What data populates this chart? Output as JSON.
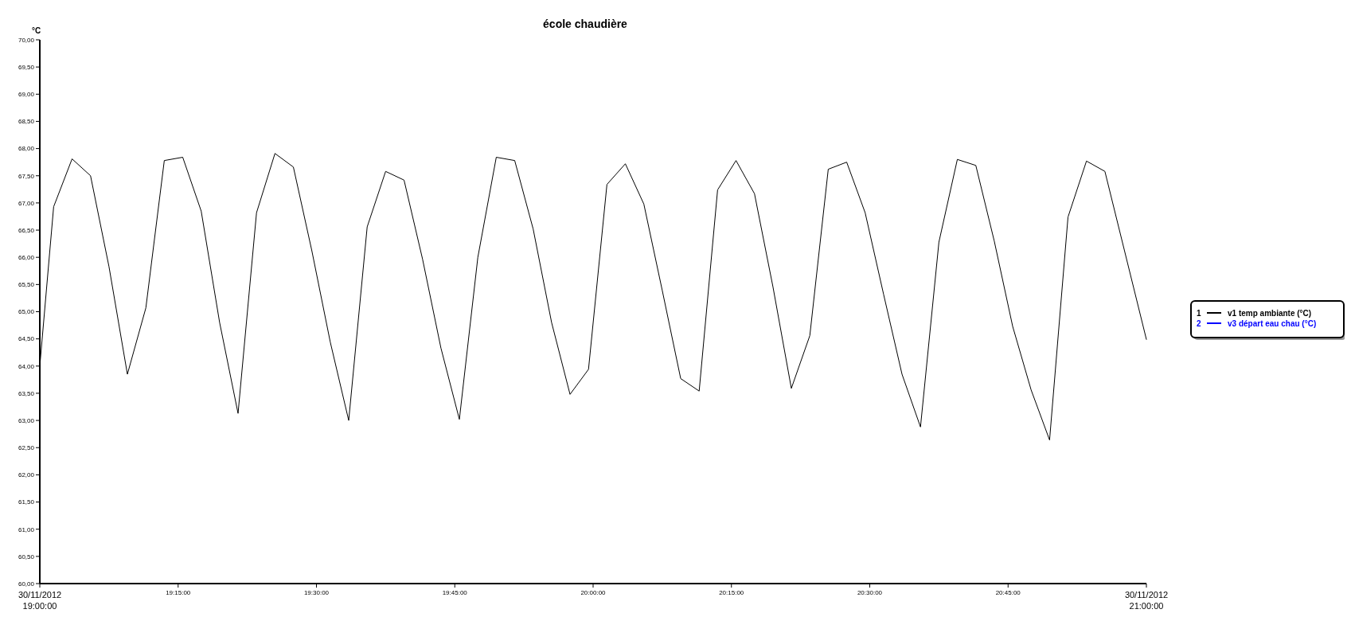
{
  "chart_data": {
    "type": "line",
    "title": "école chaudière",
    "ylabel": "°C",
    "xlim": [
      19,
      21
    ],
    "xticks": [
      {
        "value": 19,
        "label": "30/11/2012\n19:00:00"
      },
      {
        "value": 19.25,
        "label": "19:15:00"
      },
      {
        "value": 19.5,
        "label": "19:30:00"
      },
      {
        "value": 19.75,
        "label": "19:45:00"
      },
      {
        "value": 20,
        "label": "20:00:00"
      },
      {
        "value": 20.25,
        "label": "20:15:00"
      },
      {
        "value": 20.5,
        "label": "20:30:00"
      },
      {
        "value": 20.75,
        "label": "20:45:00"
      },
      {
        "value": 21,
        "label": "30/11/2012\n21:00:00"
      }
    ],
    "ylim": [
      60,
      70
    ],
    "yticks": [
      {
        "value": 60,
        "label": "60,00"
      },
      {
        "value": 60.5,
        "label": "60,50"
      },
      {
        "value": 61,
        "label": "61,00"
      },
      {
        "value": 61.5,
        "label": "61,50"
      },
      {
        "value": 62,
        "label": "62,00"
      },
      {
        "value": 62.5,
        "label": "62,50"
      },
      {
        "value": 63,
        "label": "63,00"
      },
      {
        "value": 63.5,
        "label": "63,50"
      },
      {
        "value": 64,
        "label": "64,00"
      },
      {
        "value": 64.5,
        "label": "64,50"
      },
      {
        "value": 65,
        "label": "65,00"
      },
      {
        "value": 65.5,
        "label": "65,50"
      },
      {
        "value": 66,
        "label": "66,00"
      },
      {
        "value": 66.5,
        "label": "66,50"
      },
      {
        "value": 67,
        "label": "67,00"
      },
      {
        "value": 67.5,
        "label": "67,50"
      },
      {
        "value": 68,
        "label": "68,00"
      },
      {
        "value": 68.5,
        "label": "68,50"
      },
      {
        "value": 69,
        "label": "69,00"
      },
      {
        "value": 69.5,
        "label": "69,50"
      },
      {
        "value": 70,
        "label": "70,00"
      }
    ],
    "annotations": [
      "1",
      "2"
    ],
    "grid": false,
    "legend": "right",
    "marker": "none",
    "line_style": "solid",
    "series": [
      {
        "name": "v1 temp ambiante (°C)",
        "color": "#000000",
        "x": [
          19,
          19.025,
          19.0583,
          19.0917,
          19.125,
          19.1583,
          19.1917,
          19.225,
          19.2583,
          19.2917,
          19.325,
          19.3583,
          19.3917,
          19.425,
          19.4583,
          19.4917,
          19.525,
          19.5583,
          19.5917,
          19.625,
          19.6583,
          19.6917,
          19.725,
          19.7583,
          19.7917,
          19.825,
          19.8583,
          19.8917,
          19.925,
          19.9583,
          19.9917,
          20.025,
          20.0583,
          20.0917,
          20.125,
          20.1583,
          20.1917,
          20.225,
          20.2583,
          20.2917,
          20.325,
          20.3583,
          20.3917,
          20.425,
          20.4583,
          20.4917,
          20.525,
          20.5583,
          20.5917,
          20.625,
          20.6583,
          20.6917,
          20.725,
          20.7583,
          20.7917,
          20.825,
          20.8583,
          20.8917,
          20.925,
          21
        ],
        "values": [
          64.0,
          66.93,
          67.81,
          67.5,
          65.83,
          63.85,
          65.07,
          67.78,
          67.84,
          66.85,
          64.8,
          63.13,
          66.82,
          67.91,
          67.66,
          66.12,
          64.44,
          63.0,
          66.56,
          67.58,
          67.42,
          65.97,
          64.33,
          63.02,
          66.0,
          67.84,
          67.78,
          66.52,
          64.8,
          63.48,
          63.94,
          67.34,
          67.72,
          66.98,
          65.39,
          63.77,
          63.54,
          67.24,
          67.78,
          67.17,
          65.46,
          63.59,
          64.56,
          67.62,
          67.75,
          66.82,
          65.32,
          63.85,
          62.88,
          66.28,
          67.8,
          67.69,
          66.3,
          64.73,
          63.56,
          62.64,
          66.74,
          67.77,
          67.58,
          64.49
        ]
      },
      {
        "name": "v3 départ eau chau (°C)",
        "color": "#0000ff"
      }
    ]
  }
}
